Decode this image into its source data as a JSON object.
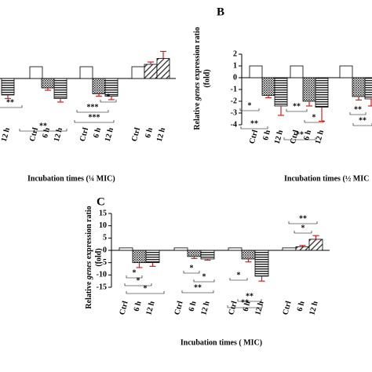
{
  "chart_data": [
    {
      "type": "bar",
      "x_label": "Incubation times (¼ MIC)",
      "categories": [
        "12 h",
        "Ctrl",
        "6 h",
        "12 h",
        "Ctrl",
        "6 h",
        "12 h",
        "Ctrl",
        "6 h",
        "12 h"
      ],
      "values": [
        -1.4,
        1,
        -0.8,
        -1.7,
        1,
        -1.3,
        -1.5,
        1,
        1.2,
        1.7
      ],
      "errors": [
        0.3,
        0,
        0.2,
        0.3,
        0,
        0.2,
        0.3,
        0,
        0.2,
        0.6
      ],
      "ylim": [
        -4,
        2
      ],
      "error_color": "#cc2222",
      "annotations": [
        "**",
        "***",
        "***",
        "**",
        "*"
      ]
    },
    {
      "type": "bar",
      "title": "B",
      "x_label": "Incubation times (½ MIC",
      "y_label": [
        "Relative ",
        "genes",
        " expression ratio"
      ],
      "y_unit": "(fold)",
      "categories": [
        "Ctrl",
        "6 h",
        "12 h",
        "Ctrl",
        "6 h",
        "12 h",
        null,
        null,
        null
      ],
      "values": [
        1,
        -1.5,
        -2.4,
        1,
        -2,
        -2.5,
        1,
        -1.6,
        -1.8
      ],
      "errors": [
        0,
        0.2,
        0.8,
        0,
        0.4,
        1.2,
        0,
        0.3,
        0.6
      ],
      "ylim": [
        -4,
        2
      ],
      "yticks": [
        -4,
        -3,
        -2,
        -1,
        0,
        1,
        2
      ],
      "error_color": "#cc2222",
      "annotations": [
        "*",
        "**",
        "**",
        "*",
        "**",
        "**",
        "**"
      ]
    },
    {
      "type": "bar",
      "title": "C",
      "x_label": "Incubation times ( MIC)",
      "y_label": [
        "Relative ",
        "genes",
        " expression ratio"
      ],
      "y_unit": "(fold)",
      "categories": [
        "Ctrl",
        "6 h",
        "12 h",
        "Ctrl",
        "6 h",
        "12 h",
        "Ctrl",
        "6 h",
        "12 h",
        "Ctrl",
        "6 h",
        "12 h"
      ],
      "values": [
        1,
        -5,
        -5,
        1,
        -2.5,
        -3.5,
        1,
        -3.5,
        -10.5,
        1,
        1.5,
        4.5
      ],
      "errors": [
        0,
        2,
        1.5,
        0,
        0.8,
        0.5,
        0,
        1.2,
        2,
        0,
        0.5,
        1.5
      ],
      "ylim": [
        -15,
        15
      ],
      "yticks": [
        -15,
        -10,
        -5,
        0,
        5,
        10,
        15
      ],
      "error_color": "#cc2222",
      "annotations": [
        "*",
        "*",
        "*",
        "*",
        "*",
        "**",
        "*",
        "**",
        "**",
        "**",
        "*"
      ]
    }
  ]
}
